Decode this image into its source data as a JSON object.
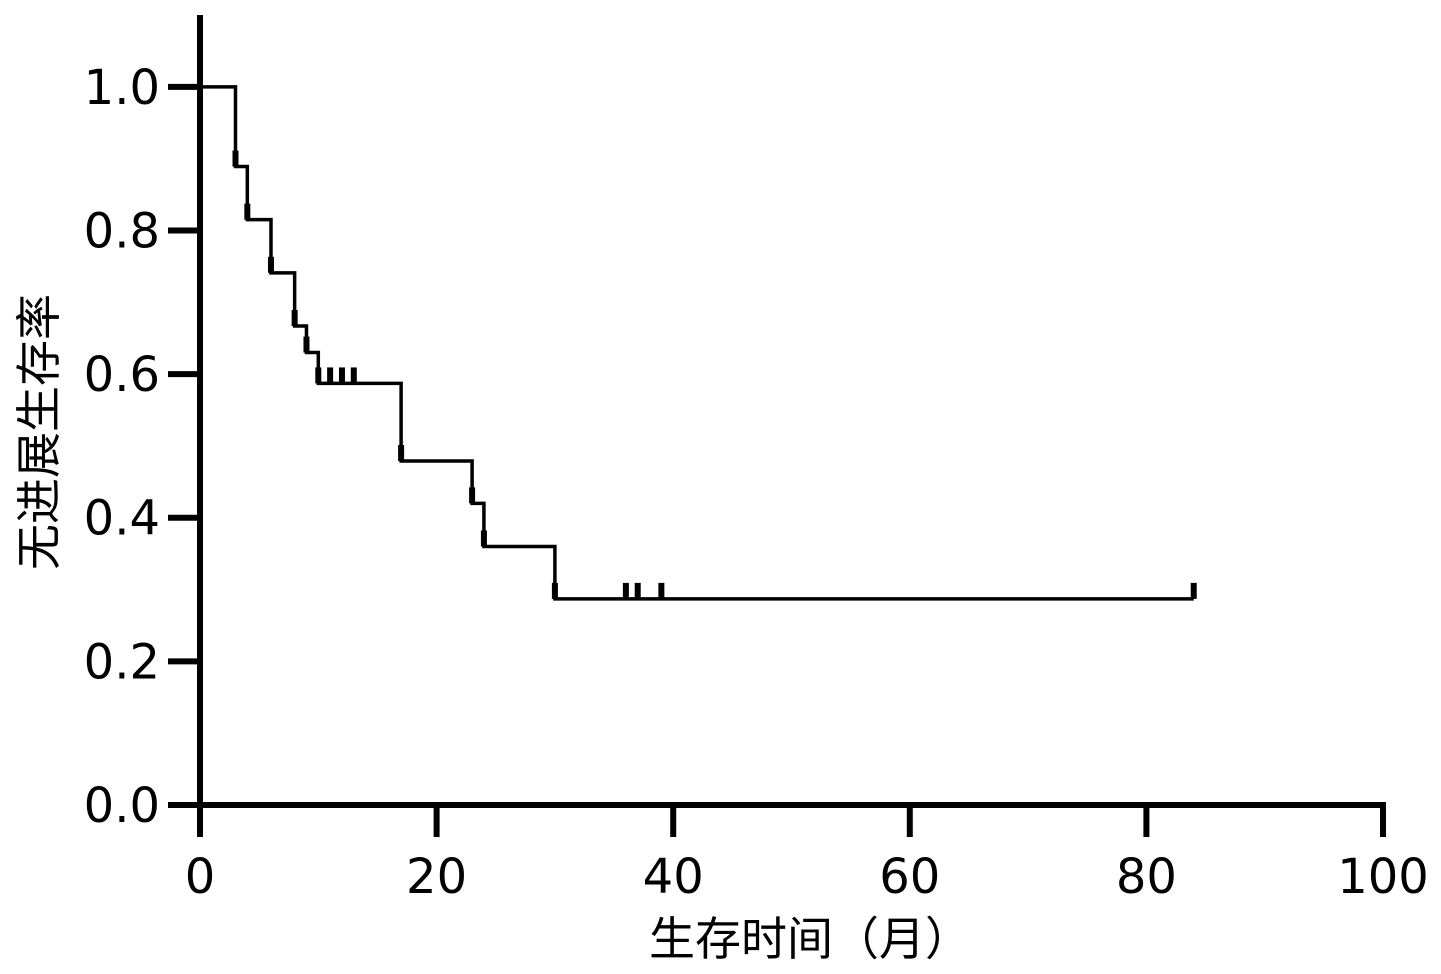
{
  "chart_data": {
    "type": "km",
    "xlabel": "生存时间（月）",
    "ylabel": "无进展生存率",
    "xlim": [
      0,
      100
    ],
    "ylim": [
      0,
      1.1
    ],
    "xticks": [
      0,
      20,
      40,
      60,
      80,
      100
    ],
    "yticks": [
      {
        "value": 0,
        "label": "0.0"
      },
      {
        "value": 0.2,
        "label": "0.2"
      },
      {
        "value": 0.4,
        "label": "0.4"
      },
      {
        "value": 0.6,
        "label": "0.6"
      },
      {
        "value": 0.8,
        "label": "0.8"
      },
      {
        "value": 1,
        "label": "1.0"
      }
    ],
    "color": "#000000",
    "steps": {
      "x": [
        0,
        3,
        4,
        6,
        8,
        9,
        10,
        17,
        23,
        24,
        30,
        84
      ],
      "y": [
        1,
        0.889,
        0.815,
        0.741,
        0.667,
        0.63,
        0.587,
        0.479,
        0.42,
        0.36,
        0.287,
        0.287
      ]
    },
    "censored": {
      "x": [
        3,
        4,
        6,
        8,
        9,
        10,
        11,
        12,
        13,
        17,
        23,
        24,
        30,
        36,
        37,
        39,
        84
      ],
      "y": [
        0.889,
        0.815,
        0.741,
        0.667,
        0.63,
        0.587,
        0.587,
        0.587,
        0.587,
        0.479,
        0.42,
        0.36,
        0.287,
        0.287,
        0.287,
        0.287,
        0.287
      ]
    }
  }
}
